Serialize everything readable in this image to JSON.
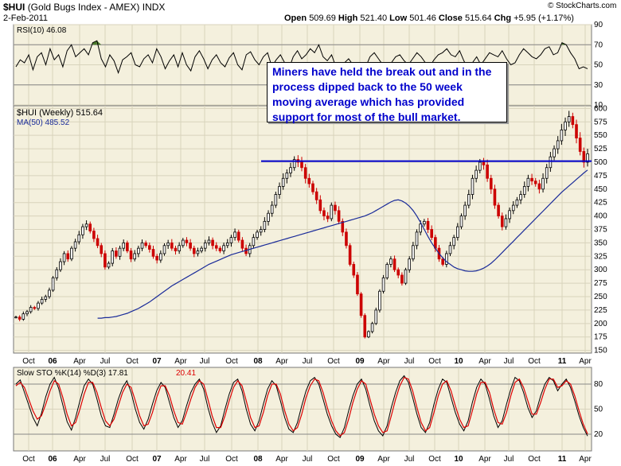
{
  "header": {
    "symbol": "$HUI",
    "name": "(Gold Bugs Index - AMEX)",
    "exchange": "INDX",
    "date": "2-Feb-2011",
    "brand": "© StockCharts.com",
    "open_label": "Open",
    "open": "509.69",
    "high_label": "High",
    "high": "521.40",
    "low_label": "Low",
    "low": "501.46",
    "close_label": "Close",
    "close": "515.64",
    "chg_label": "Chg",
    "chg": "+5.95 (+1.17%)"
  },
  "annotation": "Miners have held the break out and in the process dipped back to the 50 week moving average which has provided support for most of the bull market.",
  "colors": {
    "panel_bg": "#f4f0dd",
    "price_up": "#000000",
    "price_down": "#cc0000",
    "ma_line": "#1a2b99",
    "support_line": "#0000cc",
    "rsi_line": "#000000",
    "rsi_fill": "#4a7a2a",
    "stoch_k": "#000000",
    "stoch_d": "#dd0000"
  },
  "chart_data": [
    {
      "type": "line",
      "panel": "rsi",
      "legend": "RSI(10) 46.08",
      "ylim": [
        10,
        90
      ],
      "yticks": [
        "10",
        "30",
        "50",
        "70",
        "90"
      ],
      "guides": [
        30,
        70
      ],
      "series": [
        {
          "name": "RSI(10)",
          "values": [
            48,
            55,
            52,
            60,
            45,
            58,
            62,
            50,
            66,
            55,
            60,
            48,
            64,
            70,
            58,
            62,
            66,
            60,
            72,
            74,
            56,
            48,
            60,
            54,
            42,
            55,
            58,
            62,
            50,
            48,
            56,
            60,
            52,
            66,
            58,
            46,
            54,
            60,
            48,
            62,
            50,
            44,
            58,
            64,
            56,
            46,
            55,
            60,
            52,
            48,
            57,
            62,
            50,
            45,
            60,
            63,
            55,
            50,
            58,
            62,
            48,
            55,
            60,
            52,
            46,
            58,
            64,
            56,
            60,
            66,
            62,
            70,
            58,
            54,
            60,
            48,
            44,
            52,
            56,
            50,
            40,
            38,
            48,
            58,
            62,
            56,
            50,
            46,
            52,
            58,
            60,
            54,
            50,
            56,
            62,
            58,
            52,
            48,
            55,
            60,
            62,
            66,
            60,
            58,
            64,
            54,
            46,
            52,
            58,
            50,
            56,
            62,
            60,
            58,
            64,
            56,
            50,
            52,
            60,
            66,
            62,
            58,
            56,
            60,
            66,
            68,
            60,
            62,
            72,
            70,
            62,
            56,
            46,
            48,
            46.08
          ]
        }
      ]
    },
    {
      "type": "candlestick",
      "panel": "price",
      "legend_price": "$HUI (Weekly) 515.64",
      "legend_ma": "MA(50) 485.52",
      "ylim": [
        145,
        605
      ],
      "yticks": [
        "150",
        "175",
        "200",
        "225",
        "250",
        "275",
        "300",
        "325",
        "350",
        "375",
        "400",
        "425",
        "450",
        "475",
        "500",
        "525",
        "550",
        "575",
        "600"
      ],
      "x_labels": [
        "Oct",
        "06",
        "Apr",
        "Jul",
        "Oct",
        "07",
        "Apr",
        "Jul",
        "Oct",
        "08",
        "Apr",
        "Jul",
        "Oct",
        "09",
        "Apr",
        "Jul",
        "Oct",
        "10",
        "Apr",
        "Jul",
        "Oct",
        "11",
        "Apr"
      ],
      "support_level": 502,
      "series": [
        {
          "name": "$HUI (Weekly)",
          "values": [
            212,
            208,
            218,
            222,
            230,
            228,
            238,
            245,
            250,
            262,
            285,
            300,
            315,
            330,
            320,
            340,
            352,
            365,
            380,
            385,
            372,
            358,
            345,
            330,
            305,
            312,
            335,
            325,
            340,
            350,
            335,
            320,
            330,
            340,
            350,
            345,
            338,
            325,
            318,
            330,
            345,
            350,
            340,
            335,
            345,
            355,
            350,
            340,
            330,
            335,
            340,
            350,
            355,
            345,
            340,
            335,
            345,
            350,
            360,
            370,
            355,
            340,
            330,
            345,
            360,
            370,
            375,
            390,
            405,
            420,
            440,
            455,
            470,
            480,
            490,
            505,
            500,
            490,
            470,
            460,
            445,
            430,
            410,
            400,
            395,
            420,
            410,
            390,
            370,
            345,
            310,
            290,
            255,
            215,
            175,
            185,
            200,
            225,
            260,
            285,
            310,
            320,
            300,
            290,
            275,
            300,
            320,
            345,
            370,
            385,
            390,
            375,
            360,
            340,
            320,
            310,
            330,
            345,
            360,
            380,
            400,
            420,
            440,
            470,
            485,
            500,
            495,
            470,
            450,
            420,
            400,
            380,
            395,
            410,
            420,
            430,
            440,
            455,
            470,
            465,
            460,
            450,
            470,
            490,
            510,
            525,
            540,
            560,
            575,
            585,
            570,
            545,
            520,
            500,
            515.64
          ]
        },
        {
          "name": "MA(50)",
          "values": [
            210,
            210,
            211,
            211,
            212,
            213,
            215,
            217,
            219,
            222,
            225,
            228,
            232,
            236,
            240,
            245,
            250,
            255,
            260,
            265,
            270,
            274,
            278,
            282,
            286,
            290,
            294,
            298,
            302,
            306,
            310,
            313,
            316,
            319,
            322,
            325,
            328,
            330,
            332,
            334,
            336,
            338,
            340,
            342,
            344,
            346,
            348,
            350,
            352,
            354,
            356,
            358,
            360,
            362,
            364,
            366,
            368,
            370,
            372,
            374,
            376,
            378,
            380,
            382,
            384,
            386,
            388,
            390,
            392,
            394,
            396,
            398,
            400,
            403,
            406,
            410,
            414,
            418,
            422,
            426,
            429,
            430,
            428,
            424,
            418,
            410,
            400,
            388,
            375,
            362,
            350,
            340,
            330,
            322,
            315,
            310,
            305,
            302,
            300,
            298,
            297,
            297,
            298,
            300,
            303,
            307,
            312,
            318,
            325,
            332,
            339,
            346,
            353,
            360,
            367,
            374,
            381,
            388,
            395,
            402,
            409,
            416,
            423,
            430,
            437,
            444,
            450,
            456,
            462,
            468,
            474,
            480,
            485.52
          ]
        }
      ]
    },
    {
      "type": "line",
      "panel": "stochastic",
      "legend": "Slow STO %K(14) %D(3) 17.81, 20.41",
      "ylim": [
        0,
        100
      ],
      "yticks": [
        "20",
        "50",
        "80"
      ],
      "guides": [
        20,
        80
      ],
      "series": [
        {
          "name": "%K",
          "values": [
            80,
            85,
            70,
            55,
            40,
            30,
            45,
            65,
            80,
            88,
            75,
            55,
            35,
            25,
            40,
            60,
            78,
            86,
            80,
            62,
            42,
            30,
            28,
            44,
            62,
            76,
            84,
            70,
            50,
            34,
            26,
            38,
            56,
            72,
            82,
            76,
            58,
            40,
            28,
            36,
            54,
            70,
            80,
            86,
            74,
            52,
            34,
            22,
            30,
            50,
            68,
            82,
            86,
            72,
            50,
            32,
            24,
            36,
            56,
            74,
            84,
            78,
            60,
            40,
            26,
            22,
            34,
            54,
            72,
            84,
            88,
            80,
            62,
            44,
            30,
            20,
            16,
            28,
            48,
            66,
            80,
            86,
            74,
            54,
            36,
            24,
            18,
            30,
            52,
            70,
            84,
            90,
            82,
            64,
            44,
            28,
            22,
            34,
            56,
            74,
            86,
            82,
            64,
            46,
            32,
            24,
            36,
            58,
            76,
            86,
            80,
            62,
            42,
            28,
            36,
            56,
            74,
            88,
            84,
            70,
            52,
            40,
            48,
            66,
            80,
            88,
            84,
            72,
            80,
            86,
            76,
            60,
            42,
            28,
            17.81
          ]
        },
        {
          "name": "%D",
          "values": [
            78,
            82,
            76,
            62,
            48,
            38,
            42,
            56,
            72,
            84,
            80,
            64,
            44,
            30,
            34,
            50,
            68,
            82,
            82,
            70,
            52,
            36,
            30,
            38,
            54,
            70,
            80,
            76,
            60,
            42,
            30,
            32,
            46,
            64,
            78,
            78,
            66,
            48,
            34,
            32,
            46,
            62,
            76,
            84,
            80,
            62,
            42,
            28,
            28,
            42,
            60,
            76,
            84,
            78,
            60,
            40,
            28,
            30,
            46,
            66,
            80,
            80,
            68,
            48,
            32,
            24,
            28,
            44,
            64,
            78,
            86,
            84,
            70,
            52,
            36,
            24,
            18,
            22,
            38,
            58,
            74,
            84,
            80,
            62,
            44,
            30,
            22,
            24,
            42,
            62,
            78,
            88,
            86,
            72,
            52,
            34,
            24,
            28,
            46,
            66,
            80,
            84,
            72,
            54,
            38,
            28,
            30,
            48,
            68,
            82,
            82,
            70,
            50,
            34,
            32,
            46,
            66,
            82,
            86,
            76,
            60,
            44,
            44,
            58,
            74,
            86,
            86,
            76,
            78,
            84,
            80,
            66,
            48,
            32,
            20.41
          ]
        }
      ]
    }
  ]
}
